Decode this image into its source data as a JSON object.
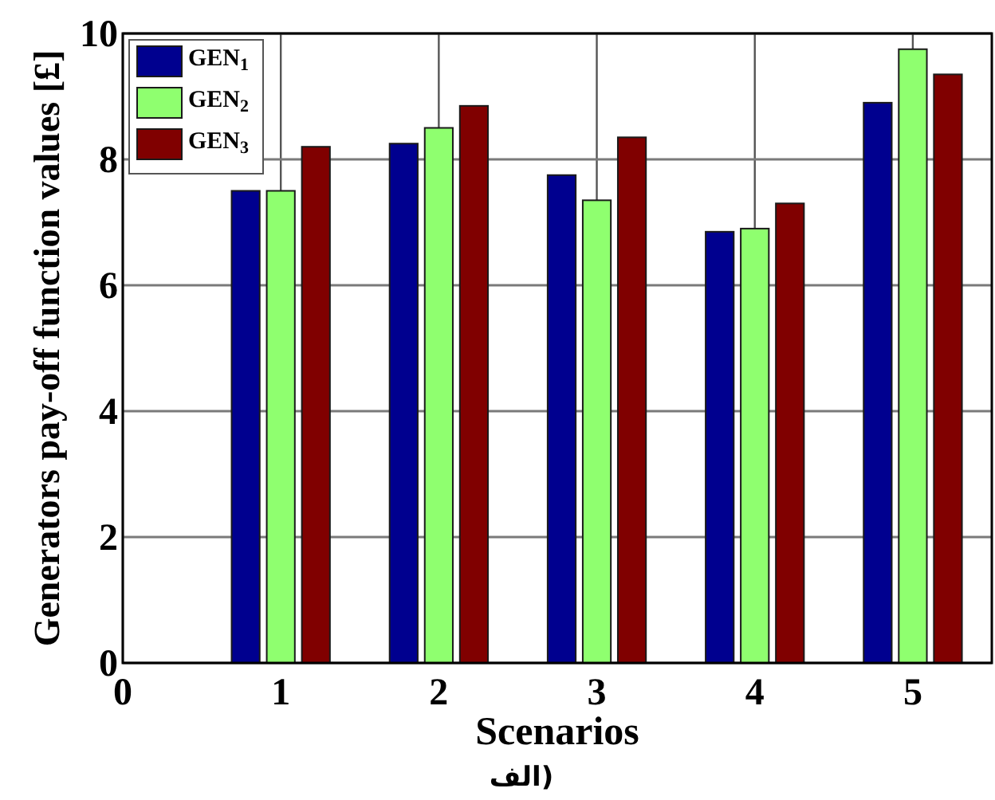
{
  "chart_data": {
    "type": "bar",
    "xlabel": "Scenarios",
    "ylabel": "Generators pay-off function values [£]",
    "x": [
      1,
      2,
      3,
      4,
      5
    ],
    "series": [
      {
        "name": "GEN$_{1}$",
        "color": "#00008f",
        "values": [
          7.5,
          8.25,
          7.75,
          6.85,
          8.9
        ]
      },
      {
        "name": "GEN$_{2}$",
        "color": "#8fff6f",
        "values": [
          7.5,
          8.5,
          7.35,
          6.9,
          9.75
        ]
      },
      {
        "name": "GEN$_{3}$",
        "color": "#800000",
        "values": [
          8.2,
          8.85,
          8.35,
          7.3,
          9.35
        ]
      }
    ],
    "xlim": [
      0,
      5.5
    ],
    "xticks": [
      0,
      1,
      2,
      3,
      4,
      5
    ],
    "ylim": [
      0,
      10
    ],
    "yticks": [
      0,
      2,
      4,
      6,
      8,
      10
    ],
    "grid": true,
    "legend": "top left",
    "annotations": [
      "الف)"
    ]
  }
}
